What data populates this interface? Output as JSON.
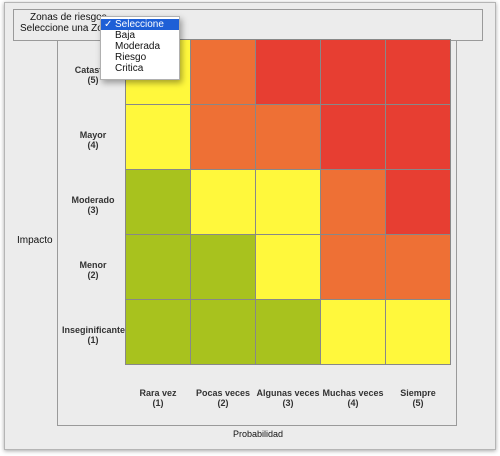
{
  "fieldset": {
    "legend": "Zonas de riesgos",
    "label": "Seleccione una Zo"
  },
  "dropdown": {
    "options": [
      "Seleccione",
      "Baja",
      "Moderada",
      "Riesgo",
      "Critica"
    ],
    "selected": "Seleccione"
  },
  "axes": {
    "y_title": "Impacto",
    "x_title": "Probabilidad",
    "rows": [
      {
        "name": "Catastrofico",
        "shown": "Catastró",
        "level": "(5)"
      },
      {
        "name": "Mayor",
        "shown": "Mayor",
        "level": "(4)"
      },
      {
        "name": "Moderado",
        "shown": "Moderado",
        "level": "(3)"
      },
      {
        "name": "Menor",
        "shown": "Menor",
        "level": "(2)"
      },
      {
        "name": "Inseginificante",
        "shown": "Inseginificante",
        "level": "(1)"
      }
    ],
    "cols": [
      {
        "name": "Rara vez",
        "level": "(1)"
      },
      {
        "name": "Pocas veces",
        "level": "(2)"
      },
      {
        "name": "Algunas veces",
        "level": "(3)"
      },
      {
        "name": "Muchas veces",
        "level": "(4)"
      },
      {
        "name": "Siempre",
        "level": "(5)"
      }
    ]
  },
  "colors": {
    "green": "#a8c21e",
    "yellow": "#fff83c",
    "orange": "#ee7035",
    "red": "#e73e32"
  },
  "matrix": [
    [
      "yellow",
      "orange",
      "red",
      "red",
      "red"
    ],
    [
      "yellow",
      "orange",
      "orange",
      "red",
      "red"
    ],
    [
      "green",
      "yellow",
      "yellow",
      "orange",
      "red"
    ],
    [
      "green",
      "green",
      "yellow",
      "orange",
      "orange"
    ],
    [
      "green",
      "green",
      "green",
      "yellow",
      "yellow"
    ]
  ]
}
